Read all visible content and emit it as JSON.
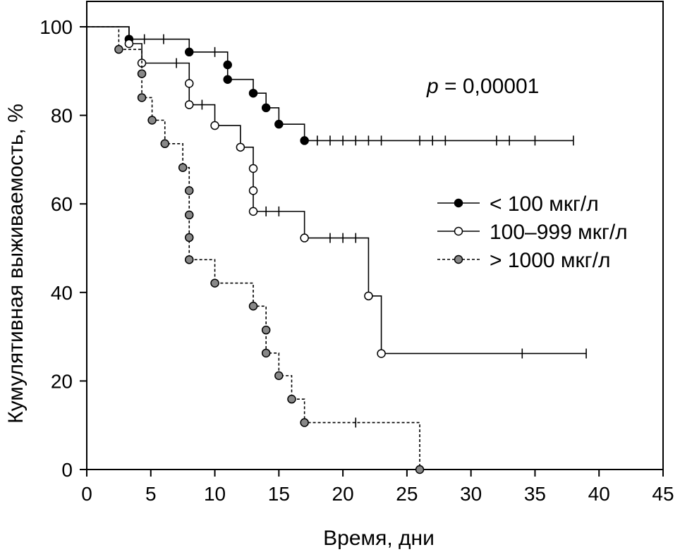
{
  "chart_data": {
    "type": "line",
    "subtype": "kaplan-meier",
    "title": "",
    "xlabel": "Время, дни",
    "ylabel": "Кумулятивная выживаемость, %",
    "xlim": [
      0,
      45
    ],
    "ylim": [
      0,
      100
    ],
    "xticks": [
      0,
      5,
      10,
      15,
      20,
      25,
      30,
      35,
      40,
      45
    ],
    "yticks": [
      0,
      20,
      40,
      60,
      80,
      100
    ],
    "annotation": {
      "italic": "p",
      "rest": " = 0,00001"
    },
    "legend_position": "right",
    "series": [
      {
        "name": "< 100 мкг/л",
        "style": "solid",
        "marker_color": "#000000",
        "steps": [
          [
            0,
            100
          ],
          [
            3.3,
            97.2
          ],
          [
            8,
            94.3
          ],
          [
            11,
            91.4
          ],
          [
            11,
            88.1
          ],
          [
            13,
            85
          ],
          [
            14,
            81.7
          ],
          [
            15,
            78
          ],
          [
            17,
            74.3
          ]
        ],
        "end_x": 38,
        "events": [
          [
            3.3,
            97.2
          ],
          [
            8,
            94.3
          ],
          [
            11,
            91.4
          ],
          [
            11,
            88.1
          ],
          [
            13,
            85
          ],
          [
            14,
            81.7
          ],
          [
            15,
            78
          ],
          [
            17,
            74.3
          ]
        ],
        "censored": [
          4.5,
          6,
          10,
          18,
          19,
          20,
          21,
          22,
          23,
          26,
          27,
          28,
          32,
          33,
          35,
          38
        ]
      },
      {
        "name": "100–999 мкг/л",
        "style": "solid",
        "marker_color": "#ffffff",
        "steps": [
          [
            0,
            100
          ],
          [
            3.3,
            96.2
          ],
          [
            4.3,
            91.8
          ],
          [
            8,
            87.2
          ],
          [
            8,
            82.4
          ],
          [
            10,
            77.7
          ],
          [
            12,
            72.8
          ],
          [
            13,
            68
          ],
          [
            13,
            63
          ],
          [
            13,
            58.3
          ],
          [
            17,
            52.3
          ],
          [
            22,
            39.2
          ],
          [
            23,
            26.2
          ]
        ],
        "end_x": 39,
        "events": [
          [
            3.3,
            96.2
          ],
          [
            4.3,
            91.8
          ],
          [
            8,
            87.2
          ],
          [
            8,
            82.4
          ],
          [
            10,
            77.7
          ],
          [
            12,
            72.8
          ],
          [
            13,
            68
          ],
          [
            13,
            63
          ],
          [
            13,
            58.3
          ],
          [
            17,
            52.3
          ],
          [
            22,
            39.2
          ],
          [
            23,
            26.2
          ]
        ],
        "censored": [
          7,
          9,
          14,
          15,
          19,
          20,
          21,
          34,
          39
        ]
      },
      {
        "name": "> 1000 мкг/л",
        "style": "dashed",
        "marker_color": "#888888",
        "steps": [
          [
            0,
            100
          ],
          [
            2.5,
            94.9
          ],
          [
            4.3,
            89.4
          ],
          [
            4.3,
            84
          ],
          [
            5.1,
            78.9
          ],
          [
            6.1,
            73.6
          ],
          [
            7.5,
            68.2
          ],
          [
            8,
            63
          ],
          [
            8,
            57.5
          ],
          [
            8,
            52.4
          ],
          [
            8,
            47.4
          ],
          [
            10,
            42.1
          ],
          [
            13,
            36.9
          ],
          [
            14,
            31.5
          ],
          [
            14,
            26.3
          ],
          [
            15,
            21.2
          ],
          [
            16,
            15.9
          ],
          [
            17,
            10.6
          ],
          [
            26,
            0
          ]
        ],
        "end_x": 26,
        "events": [
          [
            2.5,
            94.9
          ],
          [
            4.3,
            89.4
          ],
          [
            4.3,
            84
          ],
          [
            5.1,
            78.9
          ],
          [
            6.1,
            73.6
          ],
          [
            7.5,
            68.2
          ],
          [
            8,
            63
          ],
          [
            8,
            57.5
          ],
          [
            8,
            52.4
          ],
          [
            8,
            47.4
          ],
          [
            10,
            42.1
          ],
          [
            13,
            36.9
          ],
          [
            14,
            31.5
          ],
          [
            14,
            26.3
          ],
          [
            15,
            21.2
          ],
          [
            16,
            15.9
          ],
          [
            17,
            10.6
          ],
          [
            26,
            0
          ]
        ],
        "censored": [
          21
        ]
      }
    ]
  }
}
